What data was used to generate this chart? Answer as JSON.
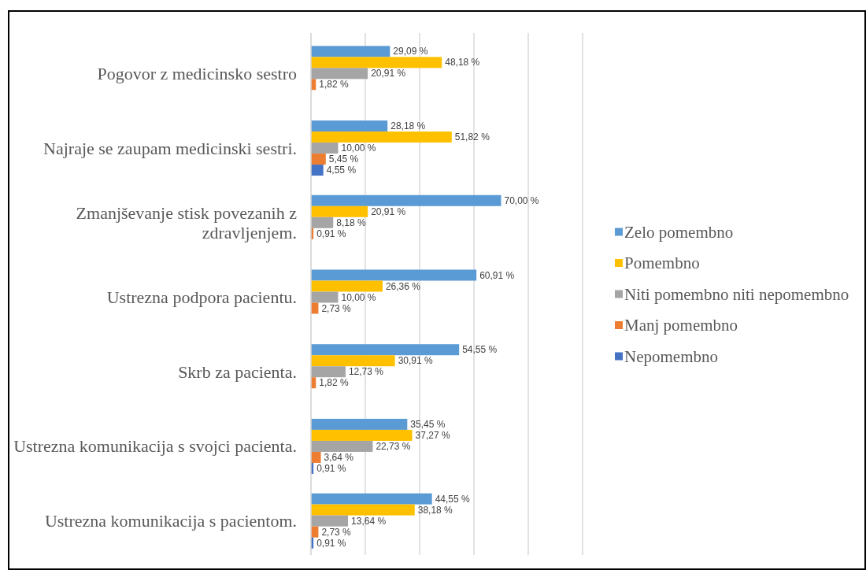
{
  "chart_data": {
    "type": "bar",
    "orientation": "horizontal",
    "categories": [
      "Pogovor z medicinsko sestro",
      "Najraje se zaupam medicinski sestri.",
      "Zmanjševanje stisk povezanih z zdravljenjem.",
      "Ustrezna podpora pacientu.",
      "Skrb za pacienta.",
      "Ustrezna komunikacija s svojci pacienta.",
      "Ustrezna komunikacija s pacientom."
    ],
    "series": [
      {
        "name": "Zelo pomembno",
        "color": "#5b9bd5",
        "values": [
          29.09,
          28.18,
          70.0,
          60.91,
          54.55,
          35.45,
          44.55
        ],
        "value_labels": [
          "29,09 %",
          "28,18 %",
          "70,00 %",
          "60,91 %",
          "54,55 %",
          "35,45 %",
          "44,55 %"
        ]
      },
      {
        "name": "Pomembno",
        "color": "#ffc000",
        "values": [
          48.18,
          51.82,
          20.91,
          26.36,
          30.91,
          37.27,
          38.18
        ],
        "value_labels": [
          "48,18 %",
          "51,82 %",
          "20,91 %",
          "26,36 %",
          "30,91 %",
          "37,27 %",
          "38,18 %"
        ]
      },
      {
        "name": "Niti pomembno niti nepomembno",
        "color": "#a5a5a5",
        "values": [
          20.91,
          10.0,
          8.18,
          10.0,
          12.73,
          22.73,
          13.64
        ],
        "value_labels": [
          "20,91 %",
          "10,00 %",
          "8,18 %",
          "10,00 %",
          "12,73 %",
          "22,73 %",
          "13,64 %"
        ]
      },
      {
        "name": "Manj pomembno",
        "color": "#ed7d31",
        "values": [
          1.82,
          5.45,
          0.91,
          2.73,
          1.82,
          3.64,
          2.73
        ],
        "value_labels": [
          "1,82 %",
          "5,45 %",
          "0,91 %",
          "2,73 %",
          "1,82 %",
          "3,64 %",
          "2,73 %"
        ]
      },
      {
        "name": "Nepomembno",
        "color": "#4472c4",
        "values": [
          null,
          4.55,
          null,
          null,
          null,
          0.91,
          0.91
        ],
        "value_labels": [
          null,
          "4,55 %",
          null,
          null,
          null,
          "0,91 %",
          "0,91 %"
        ]
      }
    ],
    "xlim": [
      0,
      100
    ],
    "xticks": [
      {
        "value": 0,
        "label": null
      },
      {
        "value": 20,
        "label": null
      },
      {
        "value": 40,
        "label": null
      },
      {
        "value": 60,
        "label": null
      },
      {
        "value": 80,
        "label": null
      },
      {
        "value": 100,
        "label": null
      }
    ],
    "grid": "x",
    "legend": "right",
    "tick_labels": "y"
  }
}
